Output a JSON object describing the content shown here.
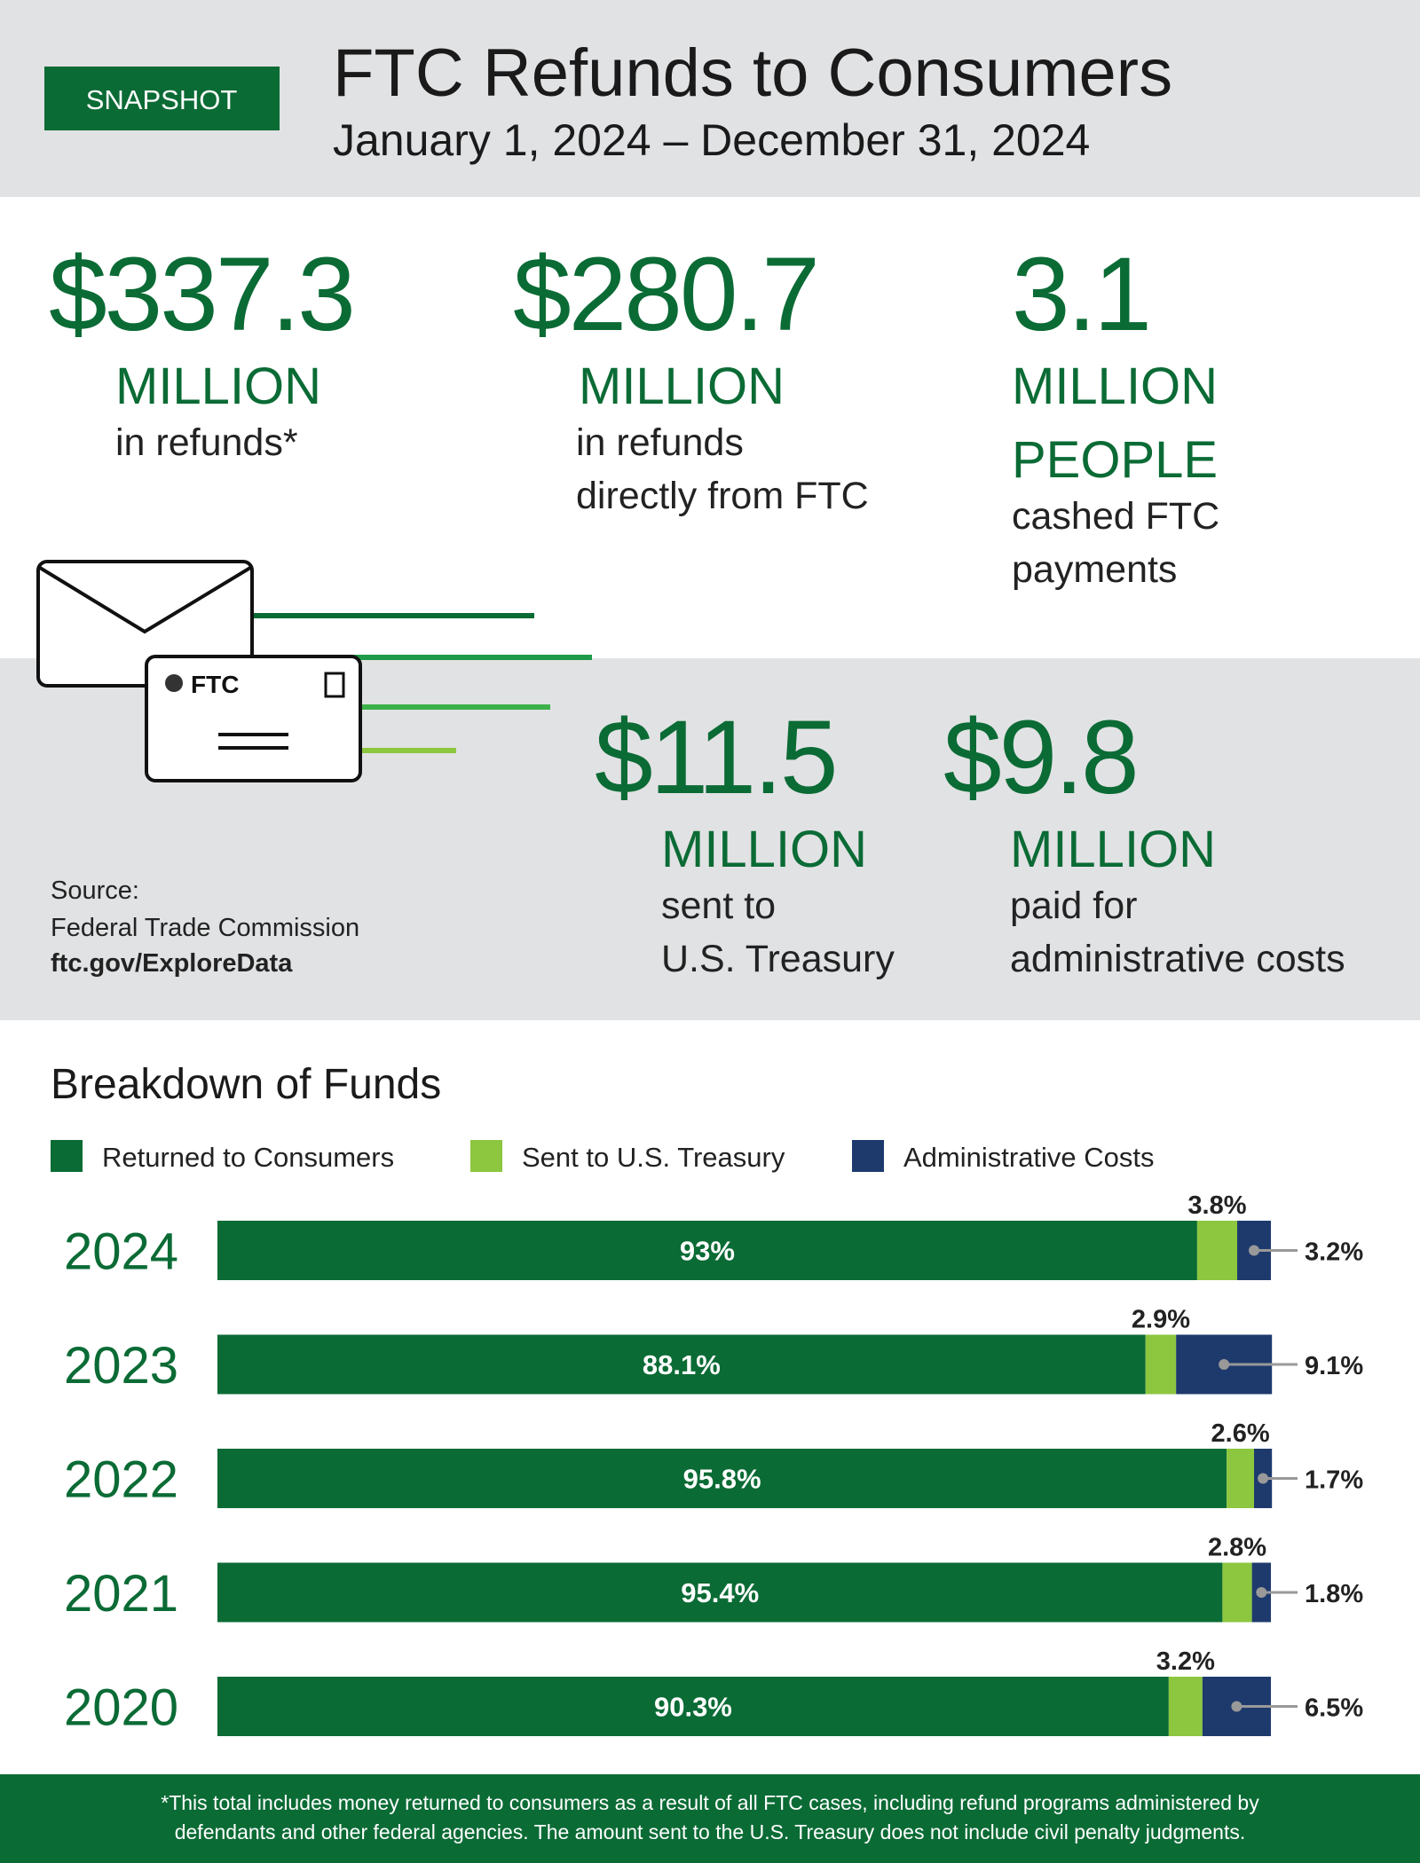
{
  "header": {
    "badge": "SNAPSHOT",
    "title": "FTC Refunds to Consumers",
    "subtitle": "January 1, 2024 – December 31, 2024"
  },
  "stats": [
    {
      "value": "$337.3",
      "unit": [
        "MILLION"
      ],
      "label": [
        "in refunds*"
      ]
    },
    {
      "value": "$280.7",
      "unit": [
        "MILLION"
      ],
      "label": [
        "in refunds",
        "directly from FTC"
      ]
    },
    {
      "value": "3.1",
      "unit": [
        "MILLION",
        "PEOPLE"
      ],
      "label": [
        "cashed FTC",
        "payments"
      ]
    },
    {
      "value": "$11.5",
      "unit": [
        "MILLION"
      ],
      "label": [
        "sent to",
        "U.S. Treasury"
      ]
    },
    {
      "value": "$9.8",
      "unit": [
        "MILLION"
      ],
      "label": [
        "paid for",
        "administrative costs"
      ]
    }
  ],
  "envelope_label": "FTC",
  "source": {
    "label": "Source:",
    "org": "Federal Trade Commission",
    "url": "ftc.gov/ExploreData"
  },
  "chart_data": {
    "type": "bar",
    "orientation": "horizontal",
    "stacked": true,
    "title": "Breakdown of Funds",
    "categories": [
      "2024",
      "2023",
      "2022",
      "2021",
      "2020"
    ],
    "xlim": [
      0,
      100
    ],
    "series": [
      {
        "name": "Returned to Consumers",
        "color": "#0b6b35",
        "values": [
          93,
          88.1,
          95.8,
          95.4,
          90.3
        ],
        "value_labels": [
          "93%",
          "88.1%",
          "95.8%",
          "95.4%",
          "90.3%"
        ]
      },
      {
        "name": "Sent to U.S. Treasury",
        "color": "#8dc63f",
        "values": [
          3.8,
          2.9,
          2.6,
          2.8,
          3.2
        ],
        "value_labels": [
          "3.8%",
          "2.9%",
          "2.6%",
          "2.8%",
          "3.2%"
        ]
      },
      {
        "name": "Administrative Costs",
        "color": "#1e3a6d",
        "values": [
          3.2,
          9.1,
          1.7,
          1.8,
          6.5
        ],
        "value_labels": [
          "3.2%",
          "9.1%",
          "1.7%",
          "1.8%",
          "6.5%"
        ]
      }
    ]
  },
  "footnote": [
    "*This total includes money returned to consumers as a result of all FTC cases, including refund programs administered by",
    "defendants and other federal agencies. The amount sent to the U.S. Treasury does not include civil penalty judgments."
  ]
}
